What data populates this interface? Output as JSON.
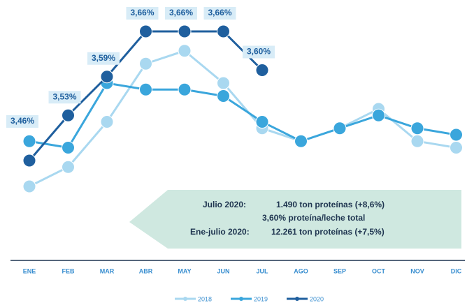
{
  "chart_data": {
    "type": "line",
    "categories": [
      "ENE",
      "FEB",
      "MAR",
      "ABR",
      "MAY",
      "JUN",
      "JUL",
      "AGO",
      "SEP",
      "OCT",
      "NOV",
      "DIC"
    ],
    "series": [
      {
        "name": "2018",
        "color": "#a9d8f0",
        "values": [
          3.42,
          3.45,
          3.52,
          3.61,
          3.63,
          3.58,
          3.51,
          3.49,
          3.51,
          3.54,
          3.49,
          3.48
        ]
      },
      {
        "name": "2019",
        "color": "#3aa6dc",
        "values": [
          3.49,
          3.48,
          3.58,
          3.57,
          3.57,
          3.56,
          3.52,
          3.49,
          3.51,
          3.53,
          3.51,
          3.5
        ]
      },
      {
        "name": "2020",
        "color": "#1f5f9e",
        "values": [
          3.46,
          3.53,
          3.59,
          3.66,
          3.66,
          3.66,
          3.6,
          null,
          null,
          null,
          null,
          null
        ],
        "value_labels": [
          "3,46%",
          "3,53%",
          "3,59%",
          "3,66%",
          "3,66%",
          "3,66%",
          "3,60%",
          null,
          null,
          null,
          null,
          null
        ]
      }
    ],
    "ylim": [
      3.38,
      3.7
    ],
    "annotations": [
      [
        "Julio 2020:",
        "1.490 ton proteínas (+8,6%)"
      ],
      [
        "3,60% proteína/leche total"
      ],
      [
        "Ene-julio 2020:",
        "12.261 ton proteínas (+7,5%)"
      ]
    ]
  }
}
